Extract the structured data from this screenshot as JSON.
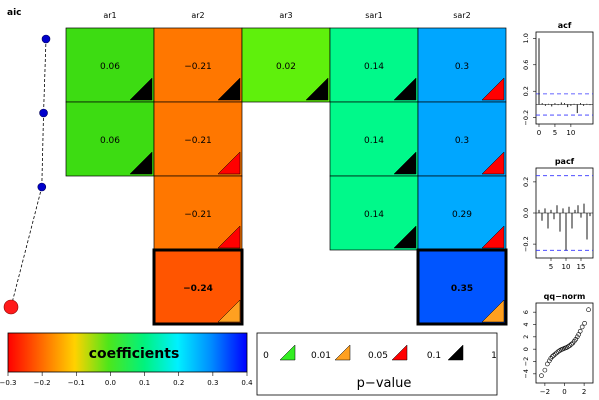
{
  "aic_panel": {
    "title": "aic",
    "values_note": "relative AIC per model row (bigger circle = selected model)",
    "values": [
      1.0,
      0.93,
      0.88,
      0.0
    ]
  },
  "chart_data": {
    "type": "heatmap",
    "columns": [
      "ar1",
      "ar2",
      "ar3",
      "sar1",
      "sar2"
    ],
    "cells": [
      [
        {
          "value": "0.06",
          "num": 0.06,
          "color": "#3ddc12",
          "p": "black",
          "present": true
        },
        {
          "value": "−0.21",
          "num": -0.21,
          "color": "#ff7700",
          "p": "black",
          "present": true
        },
        {
          "value": "0.02",
          "num": 0.02,
          "color": "#5ff00c",
          "p": "black",
          "present": true
        },
        {
          "value": "0.14",
          "num": 0.14,
          "color": "#00f98a",
          "p": "black",
          "present": true
        },
        {
          "value": "0.3",
          "num": 0.3,
          "color": "#00a6ff",
          "p": "red",
          "present": true
        }
      ],
      [
        {
          "value": "0.06",
          "num": 0.06,
          "color": "#3ddc12",
          "p": "black",
          "present": true
        },
        {
          "value": "−0.21",
          "num": -0.21,
          "color": "#ff7700",
          "p": "red",
          "present": true
        },
        {
          "value": "",
          "present": false
        },
        {
          "value": "0.14",
          "num": 0.14,
          "color": "#00f98a",
          "p": "black",
          "present": true
        },
        {
          "value": "0.3",
          "num": 0.3,
          "color": "#00a6ff",
          "p": "red",
          "present": true
        }
      ],
      [
        {
          "value": "",
          "present": false
        },
        {
          "value": "−0.21",
          "num": -0.21,
          "color": "#ff7700",
          "p": "red",
          "present": true
        },
        {
          "value": "",
          "present": false
        },
        {
          "value": "0.14",
          "num": 0.14,
          "color": "#00f98a",
          "p": "black",
          "present": true
        },
        {
          "value": "0.29",
          "num": 0.29,
          "color": "#00aaff",
          "p": "red",
          "present": true
        }
      ],
      [
        {
          "value": "",
          "present": false
        },
        {
          "value": "−0.24",
          "num": -0.24,
          "color": "#ff5500",
          "p": "orange",
          "present": true,
          "selected": true
        },
        {
          "value": "",
          "present": false
        },
        {
          "value": "",
          "present": false
        },
        {
          "value": "0.35",
          "num": 0.35,
          "color": "#0055ff",
          "p": "orange",
          "present": true,
          "selected": true
        }
      ]
    ],
    "colorbar": {
      "label": "coefficients",
      "range": [
        -0.3,
        0.4
      ],
      "ticks": [
        "−0.3",
        "−0.2",
        "−0.1",
        "0.0",
        "0.1",
        "0.2",
        "0.3",
        "0.4"
      ]
    },
    "pvalue_legend": {
      "label": "p−value",
      "breaks": [
        "0",
        "0.01",
        "0.05",
        "0.1",
        "1"
      ],
      "colors": [
        "#33ee22",
        "#ffa020",
        "#ff0000",
        "#000000"
      ]
    },
    "acf": {
      "title": "acf",
      "yticks": [
        "1.0",
        "0.6",
        "0.2",
        "−0.2"
      ],
      "yrange": [
        -0.25,
        1.05
      ],
      "xticks": [
        "0",
        "5",
        "10"
      ],
      "xrange": [
        0,
        16
      ],
      "ci": 0.16,
      "lags": [
        0,
        1,
        2,
        3,
        4,
        5,
        6,
        7,
        8,
        9,
        10,
        11,
        12,
        13,
        14,
        15,
        16
      ],
      "values": [
        1.0,
        0.02,
        -0.02,
        0.01,
        -0.03,
        0.02,
        -0.01,
        0.03,
        0.02,
        -0.04,
        -0.02,
        0.01,
        -0.13,
        0.02,
        -0.02,
        0.01,
        -0.01
      ]
    },
    "pacf": {
      "title": "pacf",
      "yticks": [
        "0.2",
        "0.0",
        "−0.2"
      ],
      "yrange": [
        -0.27,
        0.27
      ],
      "xticks": [
        "5",
        "10",
        "15"
      ],
      "xrange": [
        1,
        18
      ],
      "ci": 0.24,
      "lags": [
        1,
        2,
        3,
        4,
        5,
        6,
        7,
        8,
        9,
        10,
        11,
        12,
        13,
        14,
        15,
        16,
        17,
        18
      ],
      "values": [
        0.02,
        -0.05,
        0.03,
        -0.1,
        0.02,
        -0.04,
        0.05,
        -0.12,
        0.03,
        -0.24,
        0.04,
        -0.1,
        0.02,
        0.05,
        -0.03,
        0.06,
        -0.17,
        -0.02
      ]
    },
    "qqnorm": {
      "title": "qq−norm",
      "yticks": [
        "6",
        "4",
        "2",
        "0",
        "−2",
        "−4"
      ],
      "yrange": [
        -5,
        7
      ],
      "xticks": [
        "−2",
        "0",
        "2"
      ],
      "xrange": [
        -2.6,
        2.6
      ],
      "points": [
        [
          -2.35,
          -4.3
        ],
        [
          -2.0,
          -3.4
        ],
        [
          -1.75,
          -2.4
        ],
        [
          -1.55,
          -1.9
        ],
        [
          -1.4,
          -1.5
        ],
        [
          -1.25,
          -1.2
        ],
        [
          -1.1,
          -1.0
        ],
        [
          -0.95,
          -0.8
        ],
        [
          -0.8,
          -0.6
        ],
        [
          -0.65,
          -0.4
        ],
        [
          -0.5,
          -0.25
        ],
        [
          -0.35,
          -0.1
        ],
        [
          -0.2,
          0.0
        ],
        [
          -0.05,
          0.1
        ],
        [
          0.1,
          0.2
        ],
        [
          0.25,
          0.3
        ],
        [
          0.4,
          0.45
        ],
        [
          0.55,
          0.6
        ],
        [
          0.7,
          0.8
        ],
        [
          0.85,
          1.0
        ],
        [
          1.0,
          1.3
        ],
        [
          1.15,
          1.6
        ],
        [
          1.3,
          2.0
        ],
        [
          1.45,
          2.4
        ],
        [
          1.6,
          2.9
        ],
        [
          1.8,
          3.6
        ],
        [
          2.05,
          4.2
        ],
        [
          2.45,
          6.4
        ]
      ]
    }
  }
}
